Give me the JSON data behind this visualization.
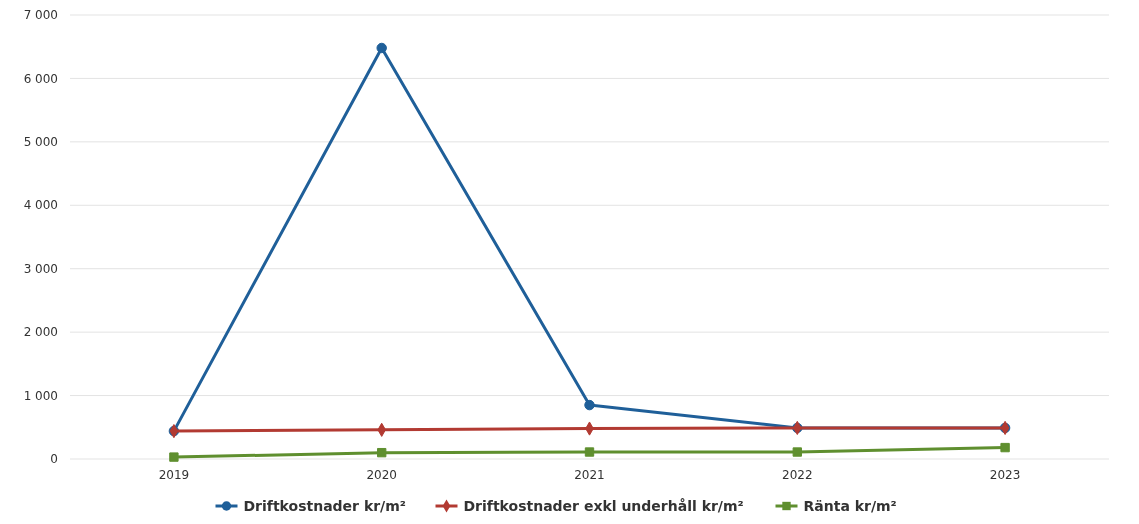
{
  "chart_data": {
    "type": "line",
    "categories": [
      "2019",
      "2020",
      "2021",
      "2022",
      "2023"
    ],
    "series": [
      {
        "name": "Driftkostnader kr/m²",
        "color": "#1f5f99",
        "marker": "circle",
        "values": [
          440,
          6480,
          850,
          490,
          490
        ]
      },
      {
        "name": "Driftkostnader exkl underhåll kr/m²",
        "color": "#b23a32",
        "marker": "diamond",
        "values": [
          440,
          460,
          480,
          490,
          490
        ]
      },
      {
        "name": "Ränta kr/m²",
        "color": "#5f8f2f",
        "marker": "square",
        "values": [
          30,
          100,
          110,
          110,
          180
        ]
      }
    ],
    "ylim": [
      0,
      7000
    ],
    "yticks": [
      0,
      {
        "value": 1000,
        "label": "1 000"
      },
      {
        "value": 2000,
        "label": "2 000"
      },
      {
        "value": 3000,
        "label": "3 000"
      },
      {
        "value": 4000,
        "label": "4 000"
      },
      {
        "value": 5000,
        "label": "5 000"
      },
      {
        "value": 6000,
        "label": "6 000"
      },
      {
        "value": 7000,
        "label": "7 000"
      }
    ],
    "grid": "y",
    "legend": "bottom"
  }
}
